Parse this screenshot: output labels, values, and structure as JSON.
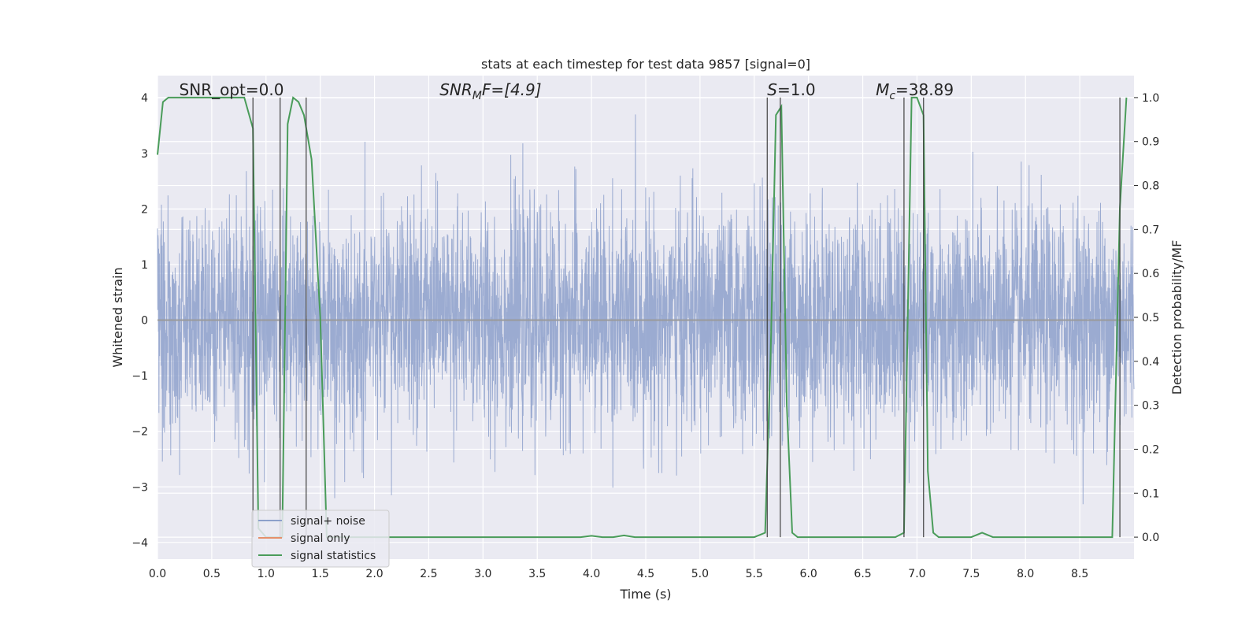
{
  "chart_data": {
    "type": "line",
    "title": "stats at each timestep for test data 9857 [signal=0]",
    "xlabel": "Time (s)",
    "ylabel": "Whitened strain",
    "ylabel_right": "Detection probability/MF",
    "xlim": [
      0.0,
      9.0
    ],
    "ylim_left": [
      -4.3,
      4.4
    ],
    "ylim_right": [
      -0.05,
      1.05
    ],
    "x_ticks": [
      "0.0",
      "0.5",
      "1.0",
      "1.5",
      "2.0",
      "2.5",
      "3.0",
      "3.5",
      "4.0",
      "4.5",
      "5.0",
      "5.5",
      "6.0",
      "6.5",
      "7.0",
      "7.5",
      "8.0",
      "8.5"
    ],
    "y_ticks_left": [
      "−4",
      "−3",
      "−2",
      "−1",
      "0",
      "1",
      "2",
      "3",
      "4"
    ],
    "y_ticks_right": [
      "0.0",
      "0.1",
      "0.2",
      "0.3",
      "0.4",
      "0.5",
      "0.6",
      "0.7",
      "0.8",
      "0.9",
      "1.0"
    ],
    "grid": true,
    "legend_placement": "lower-left",
    "annotations": [
      {
        "prefix": "SNR_opt=0.0",
        "sub": "",
        "suffix": "",
        "x": 0.2
      },
      {
        "prefix": "SNR",
        "sub": "M",
        "suffix": "F=[4.9]",
        "x": 2.6
      },
      {
        "prefix": "S",
        "sub": "",
        "suffix": "=1.0",
        "x": 5.62
      },
      {
        "prefix": "M",
        "sub": "c",
        "suffix": "=38.89",
        "x": 6.62
      }
    ],
    "vertical_lines_x": [
      0.88,
      1.13,
      1.37,
      5.62,
      5.74,
      6.88,
      7.06,
      8.87
    ],
    "series": [
      {
        "name": "signal+ noise",
        "color": "#8da0cb",
        "description_axis": "left",
        "noise_envelope": {
          "typical_abs": 1.9,
          "max": 3.7,
          "min": -3.9
        }
      },
      {
        "name": "signal only",
        "color": "#e5906b",
        "description_axis": "left",
        "x": [
          0.0,
          9.0
        ],
        "y": [
          0.0,
          0.0
        ]
      },
      {
        "name": "signal statistics",
        "color": "#4a9c5a",
        "description_axis": "right",
        "x": [
          0.0,
          0.05,
          0.1,
          0.2,
          0.4,
          0.6,
          0.8,
          0.88,
          0.93,
          1.0,
          1.05,
          1.1,
          1.15,
          1.2,
          1.25,
          1.3,
          1.35,
          1.42,
          1.5,
          1.56,
          1.62,
          2.0,
          3.0,
          3.9,
          4.0,
          4.1,
          4.2,
          4.3,
          4.4,
          5.0,
          5.5,
          5.6,
          5.65,
          5.7,
          5.75,
          5.8,
          5.85,
          5.9,
          6.0,
          6.5,
          6.8,
          6.88,
          6.95,
          7.0,
          7.06,
          7.1,
          7.15,
          7.2,
          7.3,
          7.5,
          7.6,
          7.7,
          8.0,
          8.5,
          8.8,
          8.87,
          8.93
        ],
        "y": [
          0.87,
          0.99,
          1.0,
          1.0,
          1.0,
          1.0,
          1.0,
          0.93,
          0.02,
          0.0,
          0.0,
          0.0,
          0.0,
          0.94,
          1.0,
          0.99,
          0.96,
          0.86,
          0.5,
          0.0,
          0.0,
          0.0,
          0.0,
          0.0,
          0.003,
          0.0,
          0.0,
          0.004,
          0.0,
          0.0,
          0.0,
          0.01,
          0.4,
          0.96,
          0.98,
          0.3,
          0.01,
          0.0,
          0.0,
          0.0,
          0.0,
          0.01,
          1.0,
          1.0,
          0.96,
          0.15,
          0.01,
          0.0,
          0.0,
          0.0,
          0.01,
          0.0,
          0.0,
          0.0,
          0.0,
          0.75,
          1.0
        ]
      }
    ]
  },
  "legend": {
    "items": [
      {
        "label": "signal+ noise",
        "color": "#8da0cb"
      },
      {
        "label": "signal only",
        "color": "#e5906b"
      },
      {
        "label": "signal statistics",
        "color": "#4a9c5a"
      }
    ]
  },
  "colors": {
    "plot_background": "#eaeaf2",
    "grid": "#ffffff",
    "vline": "#404040"
  }
}
